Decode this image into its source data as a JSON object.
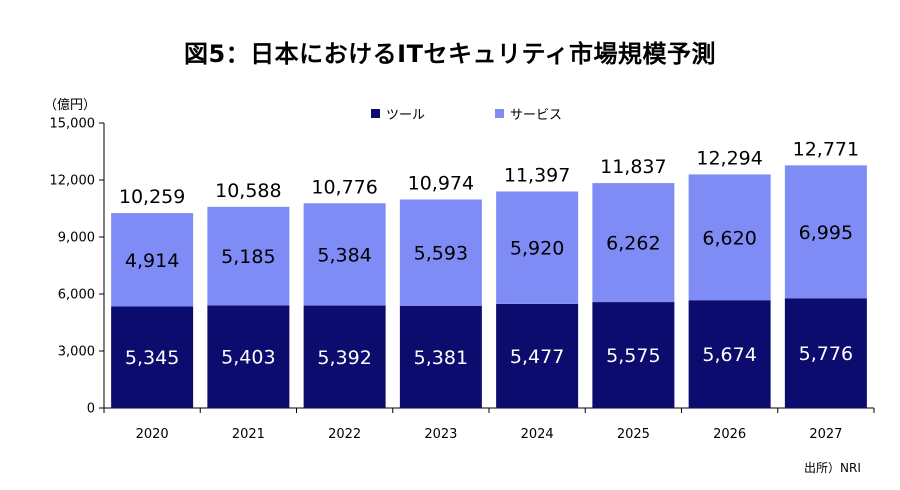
{
  "title": "図5：日本におけるITセキュリティ市場規模予測",
  "unit_label": "（億円）",
  "source": "出所）NRI",
  "colors": {
    "tool": "#0c0c6e",
    "service": "#7f8cf6"
  },
  "chart_data": {
    "type": "bar",
    "stacked": true,
    "categories": [
      "2020",
      "2021",
      "2022",
      "2023",
      "2024",
      "2025",
      "2026",
      "2027"
    ],
    "series": [
      {
        "name": "ツール",
        "values": [
          5345,
          5403,
          5392,
          5381,
          5477,
          5575,
          5674,
          5776
        ],
        "labels": [
          "5,345",
          "5,403",
          "5,392",
          "5,381",
          "5,477",
          "5,575",
          "5,674",
          "5,776"
        ]
      },
      {
        "name": "サービス",
        "values": [
          4914,
          5185,
          5384,
          5593,
          5920,
          6262,
          6620,
          6995
        ],
        "labels": [
          "4,914",
          "5,185",
          "5,384",
          "5,593",
          "5,920",
          "6,262",
          "6,620",
          "6,995"
        ]
      }
    ],
    "totals": [
      10259,
      10588,
      10776,
      10974,
      11397,
      11837,
      12294,
      12771
    ],
    "total_labels": [
      "10,259",
      "10,588",
      "10,776",
      "10,974",
      "11,397",
      "11,837",
      "12,294",
      "12,771"
    ],
    "ylim": [
      0,
      15000
    ],
    "yticks": [
      0,
      3000,
      6000,
      9000,
      12000,
      15000
    ],
    "ytick_labels": [
      "0",
      "3,000",
      "6,000",
      "9,000",
      "12,000",
      "15,000"
    ],
    "legend_position": "top-center",
    "grid": false
  }
}
